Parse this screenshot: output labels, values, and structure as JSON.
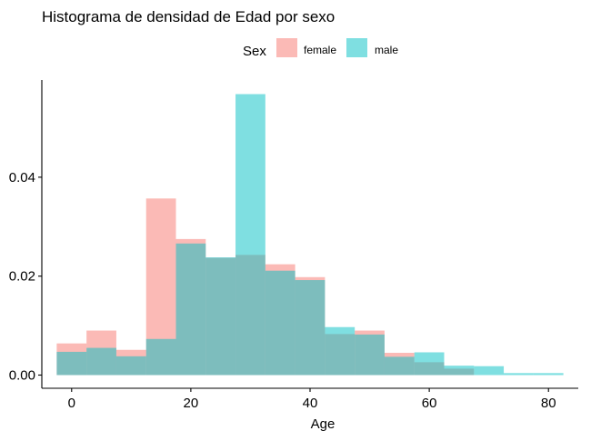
{
  "chart_data": {
    "type": "histogram",
    "title": "Histograma de densidad de Edad por sexo",
    "xlabel": "Age",
    "ylabel": "",
    "legend": {
      "title": "Sex",
      "position": "top",
      "entries": [
        "female",
        "male"
      ]
    },
    "xlim": [
      -5,
      85
    ],
    "ylim": [
      0,
      0.058
    ],
    "x_ticks": [
      0,
      20,
      40,
      60,
      80
    ],
    "y_ticks": [
      0.0,
      0.02,
      0.04
    ],
    "x_tick_labels": [
      "0",
      "20",
      "40",
      "60",
      "80"
    ],
    "y_tick_labels": [
      "0.00",
      "0.02",
      "0.04"
    ],
    "grid": false,
    "bin_width": 5,
    "bin_starts": [
      -2.5,
      2.5,
      7.5,
      12.5,
      17.5,
      22.5,
      27.5,
      32.5,
      37.5,
      42.5,
      47.5,
      52.5,
      57.5,
      62.5,
      67.5,
      72.5,
      77.5
    ],
    "series": [
      {
        "name": "female",
        "color": "#F8766D",
        "values": [
          0.0064,
          0.009,
          0.0051,
          0.0357,
          0.0275,
          0.0237,
          0.0243,
          0.0224,
          0.0198,
          0.0083,
          0.009,
          0.0045,
          0.0026,
          0.0013,
          0.0,
          0.0,
          0.0
        ]
      },
      {
        "name": "male",
        "color": "#00BFC4",
        "values": [
          0.0047,
          0.0055,
          0.0038,
          0.0073,
          0.0266,
          0.0238,
          0.0568,
          0.0211,
          0.0192,
          0.0097,
          0.0082,
          0.0037,
          0.0046,
          0.0019,
          0.0018,
          0.0004,
          0.0004
        ]
      }
    ]
  }
}
